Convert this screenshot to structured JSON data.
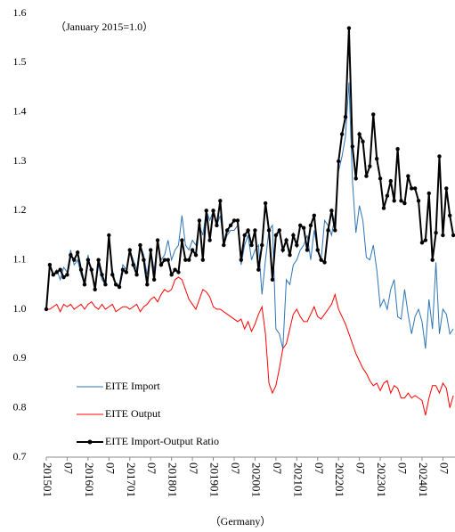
{
  "chart_data": {
    "type": "line",
    "annotation": "（January 2015=1.0）",
    "xlabel": "（Germany）",
    "categories": [
      "201501",
      null,
      null,
      null,
      null,
      null,
      "07",
      null,
      null,
      null,
      null,
      null,
      "201601",
      null,
      null,
      null,
      null,
      null,
      "07",
      null,
      null,
      null,
      null,
      null,
      "201701",
      null,
      null,
      null,
      null,
      null,
      "07",
      null,
      null,
      null,
      null,
      null,
      "201801",
      null,
      null,
      null,
      null,
      null,
      "07",
      null,
      null,
      null,
      null,
      null,
      "201901",
      null,
      null,
      null,
      null,
      null,
      "07",
      null,
      null,
      null,
      null,
      null,
      "202001",
      null,
      null,
      null,
      null,
      null,
      "07",
      null,
      null,
      null,
      null,
      null,
      "202101",
      null,
      null,
      null,
      null,
      null,
      "07",
      null,
      null,
      null,
      null,
      null,
      "202201",
      null,
      null,
      null,
      null,
      null,
      "07",
      null,
      null,
      null,
      null,
      null,
      "202301",
      null,
      null,
      null,
      null,
      null,
      "07",
      null,
      null,
      null,
      null,
      null,
      "202401",
      null,
      null,
      null,
      null,
      null,
      "07",
      null,
      null,
      null
    ],
    "series": [
      {
        "name": "EITE Import",
        "color": "#2e75b6",
        "markers": false,
        "values": [
          1.0,
          1.09,
          1.07,
          1.08,
          1.06,
          1.085,
          1.075,
          1.12,
          1.09,
          1.1,
          1.07,
          1.05,
          1.11,
          1.07,
          1.05,
          1.09,
          1.06,
          1.05,
          1.14,
          1.08,
          1.05,
          1.05,
          1.09,
          1.08,
          1.12,
          1.1,
          1.08,
          1.13,
          1.11,
          1.07,
          1.12,
          1.08,
          1.13,
          1.1,
          1.11,
          1.14,
          1.1,
          1.12,
          1.13,
          1.19,
          1.13,
          1.12,
          1.14,
          1.13,
          1.17,
          1.15,
          1.2,
          1.18,
          1.2,
          1.17,
          1.19,
          1.13,
          1.15,
          1.16,
          1.16,
          1.17,
          1.09,
          1.13,
          1.15,
          1.1,
          1.12,
          1.13,
          1.03,
          1.1,
          1.16,
          1.17,
          0.96,
          0.95,
          0.92,
          1.06,
          1.05,
          1.09,
          1.1,
          1.12,
          1.13,
          1.15,
          1.1,
          1.16,
          1.12,
          1.1,
          1.18,
          1.17,
          1.15,
          1.19,
          1.28,
          1.31,
          1.35,
          1.46,
          1.26,
          1.155,
          1.21,
          1.18,
          1.105,
          1.1,
          1.13,
          1.08,
          1.005,
          1.02,
          1.0,
          1.04,
          1.06,
          0.985,
          0.98,
          1.04,
          0.99,
          0.95,
          0.985,
          1.0,
          0.975,
          0.92,
          1.02,
          0.96,
          1.095,
          0.95,
          1.0,
          0.99,
          0.95,
          0.96
        ]
      },
      {
        "name": "EITE Output",
        "color": "#ff0000",
        "markers": false,
        "values": [
          1.0,
          1.0,
          1.005,
          1.01,
          0.995,
          1.01,
          1.005,
          1.01,
          1.0,
          1.005,
          1.01,
          1.0,
          1.01,
          1.015,
          1.005,
          1.0,
          1.01,
          1.0,
          1.005,
          1.01,
          0.995,
          1.0,
          1.005,
          1.005,
          1.0,
          1.005,
          1.01,
          0.995,
          1.005,
          1.01,
          1.02,
          1.025,
          1.015,
          1.03,
          1.04,
          1.035,
          1.04,
          1.06,
          1.065,
          1.06,
          1.04,
          1.02,
          1.01,
          1.0,
          1.02,
          1.04,
          1.035,
          1.025,
          1.005,
          1.0,
          1.0,
          0.995,
          0.99,
          0.985,
          0.98,
          0.975,
          0.98,
          0.96,
          0.975,
          0.955,
          0.97,
          0.99,
          1.005,
          0.95,
          0.85,
          0.83,
          0.845,
          0.88,
          0.92,
          0.93,
          0.96,
          0.99,
          1.0,
          0.985,
          0.975,
          0.975,
          0.99,
          1.005,
          0.985,
          0.98,
          0.99,
          1.0,
          1.01,
          1.03,
          1.0,
          0.985,
          0.97,
          0.95,
          0.93,
          0.91,
          0.895,
          0.88,
          0.87,
          0.855,
          0.845,
          0.85,
          0.835,
          0.85,
          0.855,
          0.83,
          0.845,
          0.84,
          0.82,
          0.82,
          0.83,
          0.82,
          0.825,
          0.82,
          0.815,
          0.785,
          0.82,
          0.845,
          0.845,
          0.83,
          0.85,
          0.84,
          0.8,
          0.825
        ]
      },
      {
        "name": "EITE Import-Output Ratio",
        "color": "#000000",
        "markers": true,
        "values": [
          1.0,
          1.09,
          1.07,
          1.075,
          1.08,
          1.065,
          1.07,
          1.11,
          1.1,
          1.115,
          1.08,
          1.05,
          1.1,
          1.08,
          1.04,
          1.1,
          1.07,
          1.05,
          1.15,
          1.07,
          1.05,
          1.045,
          1.08,
          1.075,
          1.12,
          1.09,
          1.07,
          1.13,
          1.1,
          1.05,
          1.12,
          1.06,
          1.14,
          1.09,
          1.1,
          1.1,
          1.07,
          1.08,
          1.075,
          1.14,
          1.1,
          1.1,
          1.12,
          1.11,
          1.18,
          1.1,
          1.2,
          1.14,
          1.2,
          1.17,
          1.22,
          1.13,
          1.16,
          1.17,
          1.18,
          1.18,
          1.1,
          1.15,
          1.16,
          1.13,
          1.16,
          1.08,
          1.13,
          1.215,
          1.16,
          1.06,
          1.15,
          1.16,
          1.12,
          1.14,
          1.11,
          1.15,
          1.13,
          1.17,
          1.165,
          1.12,
          1.17,
          1.19,
          1.12,
          1.1,
          1.095,
          1.16,
          1.2,
          1.16,
          1.3,
          1.355,
          1.39,
          1.57,
          1.33,
          1.265,
          1.355,
          1.34,
          1.27,
          1.29,
          1.395,
          1.305,
          1.265,
          1.205,
          1.23,
          1.26,
          1.22,
          1.325,
          1.22,
          1.215,
          1.27,
          1.245,
          1.245,
          1.22,
          1.135,
          1.14,
          1.235,
          1.1,
          1.155,
          1.31,
          1.15,
          1.245,
          1.19,
          1.15
        ]
      }
    ],
    "ylim": [
      0.7,
      1.6
    ],
    "yticks": [
      0.7,
      0.8,
      0.9,
      {
        "value": 1,
        "label": "1.0"
      },
      1.1,
      1.2,
      1.3,
      1.4,
      1.5,
      1.6
    ],
    "grid": false,
    "legend": "lower-left"
  }
}
